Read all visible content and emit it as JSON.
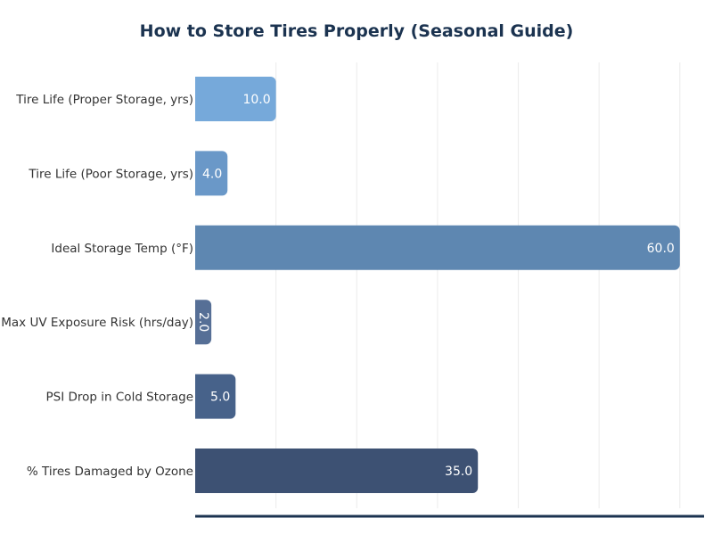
{
  "chart_data": {
    "type": "bar",
    "orientation": "horizontal",
    "title": "How to Store Tires Properly (Seasonal Guide)",
    "xlabel": "",
    "ylabel": "",
    "xlim": [
      0,
      63
    ],
    "grid": true,
    "categories": [
      "Tire Life (Proper Storage, yrs)",
      "Tire Life (Poor Storage, yrs)",
      "Ideal Storage Temp (°F)",
      "Max UV Exposure Risk (hrs/day)",
      "PSI Drop in Cold Storage",
      "% Tires Damaged by Ozone"
    ],
    "values": [
      10.0,
      4.0,
      60.0,
      2.0,
      5.0,
      35.0
    ],
    "value_labels": [
      "10.0",
      "4.0",
      "60.0",
      "2.0",
      "5.0",
      "35.0"
    ],
    "colors": [
      "#76a9da",
      "#6a98c8",
      "#5e87b1",
      "#566f96",
      "#47628a",
      "#3d5173"
    ],
    "axis_color": "#1b3350",
    "grid_color": "#ebebeb"
  }
}
